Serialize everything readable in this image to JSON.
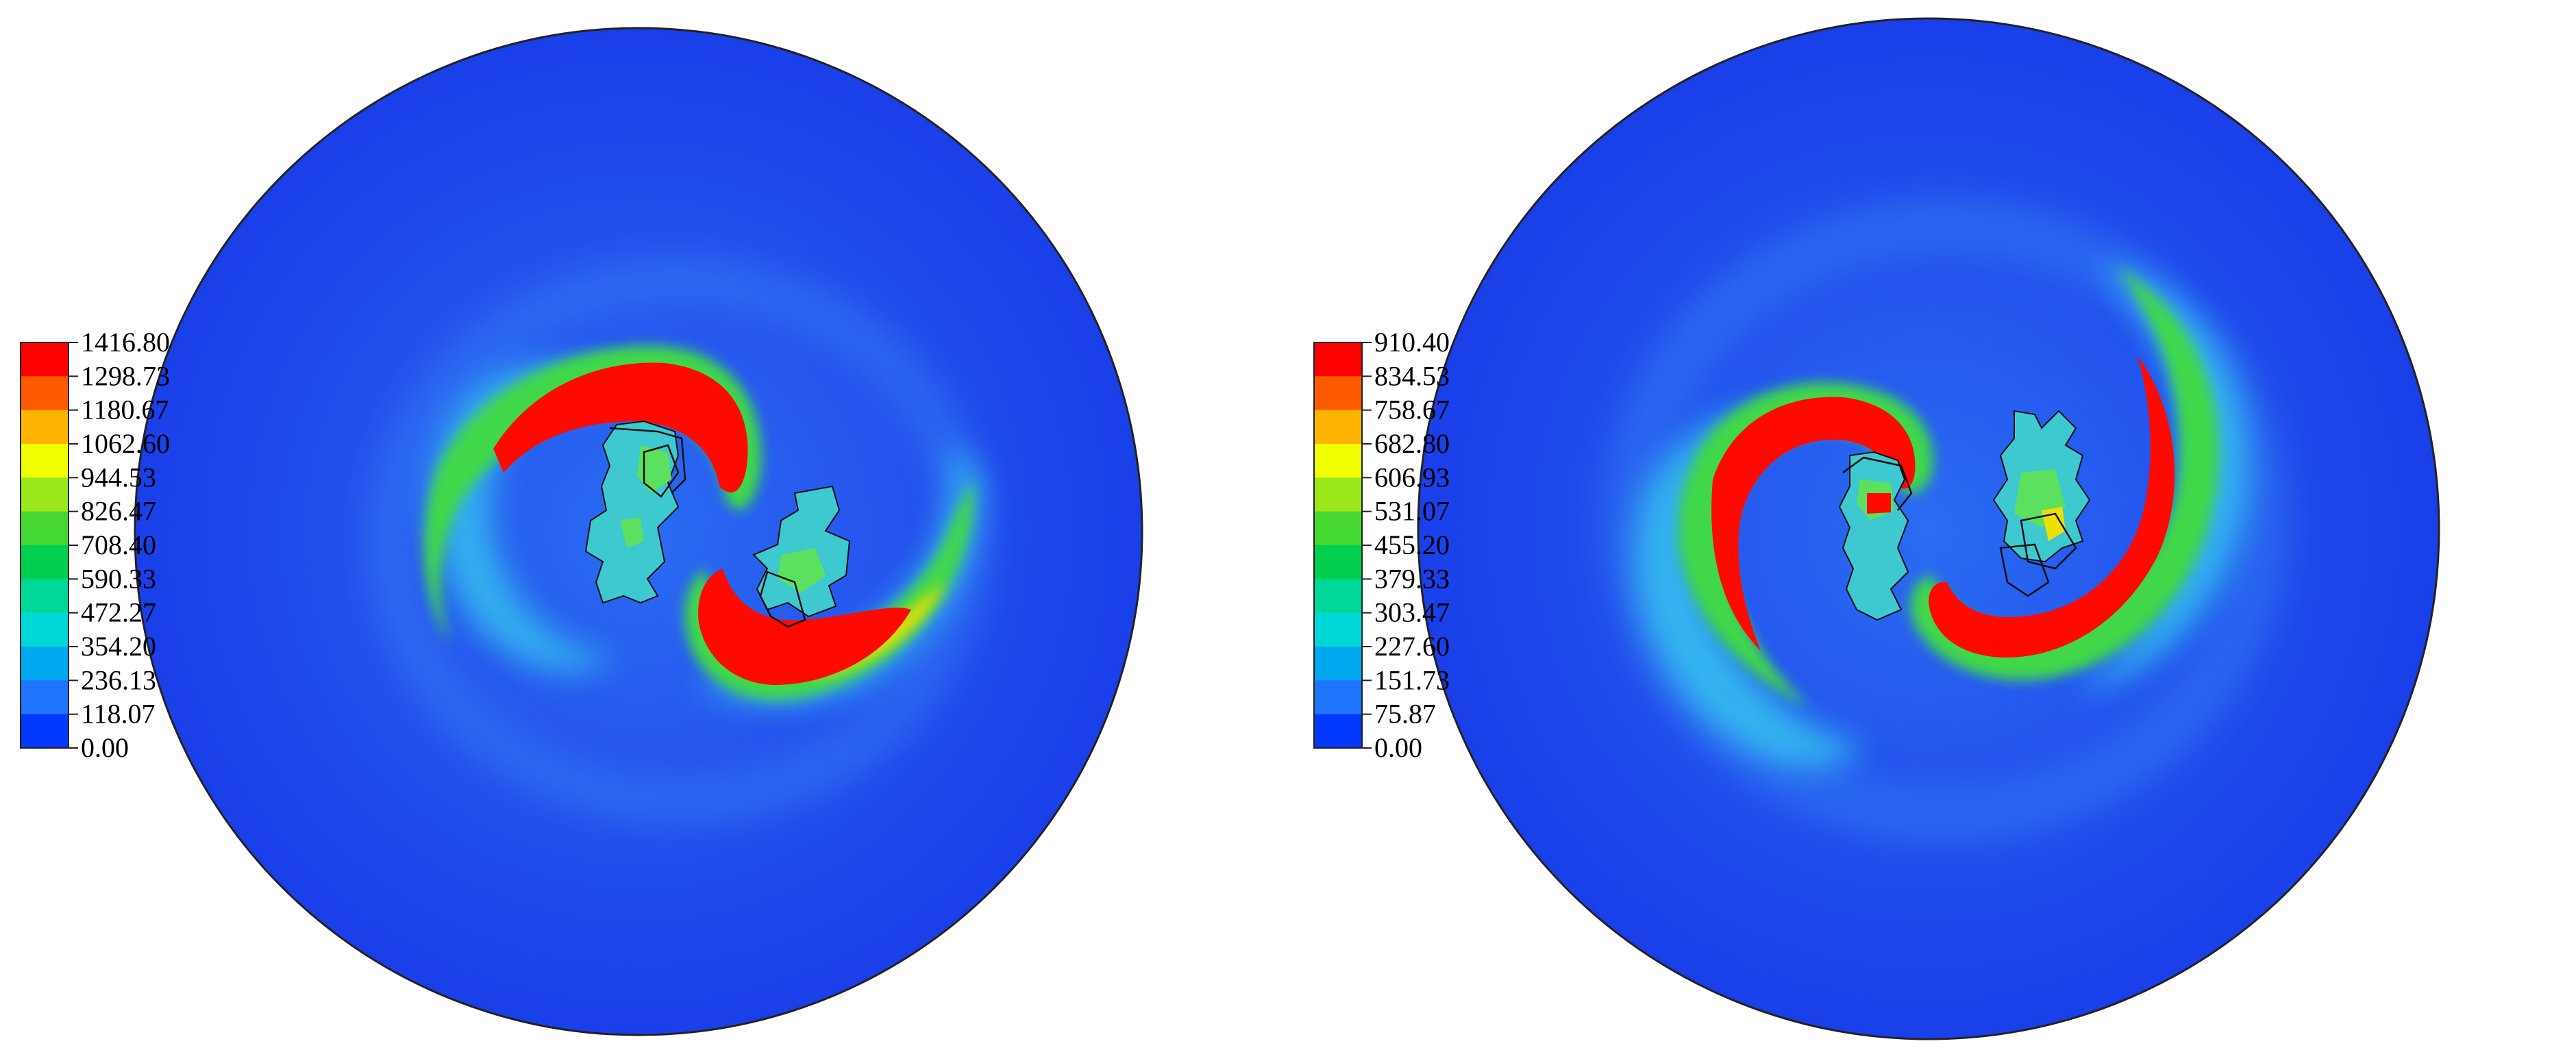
{
  "panels": [
    {
      "id": "left",
      "colorbar": {
        "labels": [
          "1416.80",
          "1298.73",
          "1180.67",
          "1062.60",
          "944.53",
          "826.47",
          "708.40",
          "590.33",
          "472.27",
          "354.20",
          "236.13",
          "118.07",
          "0.00"
        ],
        "max": 1416.8,
        "min": 0.0
      }
    },
    {
      "id": "right",
      "colorbar": {
        "labels": [
          "910.40",
          "834.53",
          "758.67",
          "682.80",
          "606.93",
          "531.07",
          "455.20",
          "379.33",
          "303.47",
          "227.60",
          "151.73",
          "75.87",
          "0.00"
        ],
        "max": 910.4,
        "min": 0.0
      }
    }
  ],
  "colors": {
    "colormap": [
      "#ff0000",
      "#ff5a00",
      "#ffb400",
      "#f0ff00",
      "#9be81a",
      "#45d830",
      "#00cf50",
      "#00d89a",
      "#00d8d8",
      "#00a8f0",
      "#1e74ff",
      "#0038ff",
      "#0000ff"
    ],
    "background_field": "#1a40ec",
    "halo": "#28c8ee",
    "outline": "#111111"
  }
}
